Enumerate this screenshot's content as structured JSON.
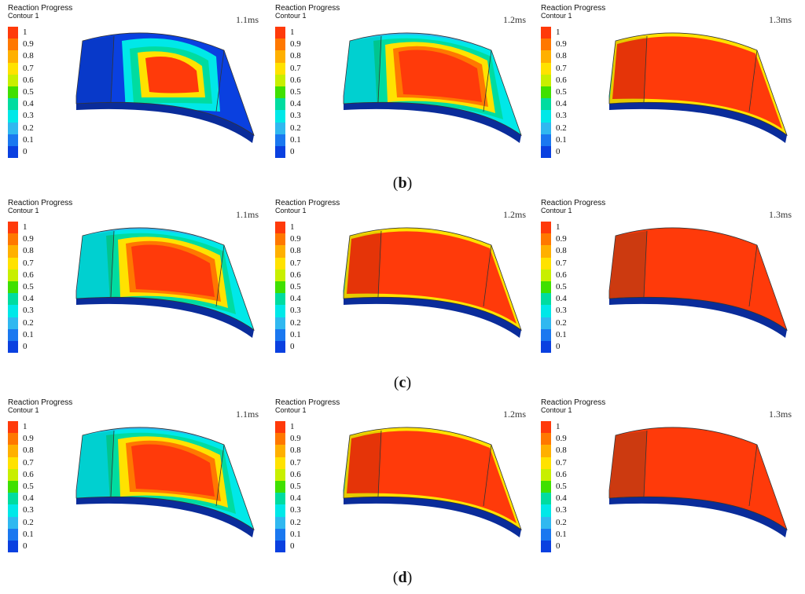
{
  "legend": {
    "title": "Reaction Progress",
    "subtitle": "Contour 1",
    "ticks": [
      "1",
      "0.9",
      "0.8",
      "0.7",
      "0.6",
      "0.5",
      "0.4",
      "0.3",
      "0.2",
      "0.1",
      "0"
    ],
    "colors": [
      "#ff3a0a",
      "#ff7800",
      "#ffb000",
      "#ffe200",
      "#c8ef00",
      "#40e000",
      "#00dca0",
      "#00e8e8",
      "#30b8f0",
      "#1a78f0",
      "#0a40e0"
    ]
  },
  "rows": [
    {
      "caption_label": "b",
      "panels": [
        {
          "time": "1.1ms",
          "state": "partial-low"
        },
        {
          "time": "1.2ms",
          "state": "partial-mid"
        },
        {
          "time": "1.3ms",
          "state": "mostly-full"
        }
      ]
    },
    {
      "caption_label": "c",
      "panels": [
        {
          "time": "1.1ms",
          "state": "partial-mid"
        },
        {
          "time": "1.2ms",
          "state": "mostly-full"
        },
        {
          "time": "1.3ms",
          "state": "full"
        }
      ]
    },
    {
      "caption_label": "d",
      "panels": [
        {
          "time": "1.1ms",
          "state": "partial-mid"
        },
        {
          "time": "1.2ms",
          "state": "mostly-full"
        },
        {
          "time": "1.3ms",
          "state": "full"
        }
      ]
    }
  ],
  "captions": {
    "b": "b",
    "c": "c",
    "d": "d"
  }
}
